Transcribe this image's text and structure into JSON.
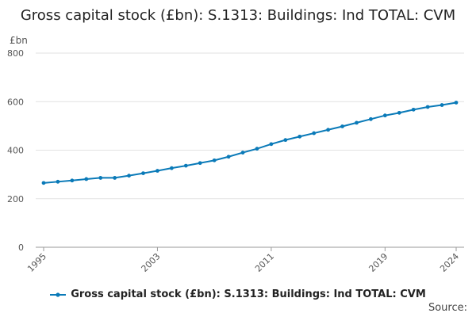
{
  "chart_data": {
    "type": "line",
    "title": "Gross capital stock (£bn): S.1313: Buildings: Ind TOTAL: CVM",
    "ylabel": "£bn",
    "xlabel": "",
    "ylim": [
      0,
      800
    ],
    "xlim": [
      1995,
      2024
    ],
    "yticks": [
      0,
      200,
      400,
      600,
      800
    ],
    "xticks": [
      1995,
      2003,
      2011,
      2019,
      2024
    ],
    "grid": true,
    "legend_position": "bottom",
    "series": [
      {
        "name": "Gross capital stock (£bn): S.1313: Buildings: Ind TOTAL: CVM",
        "color": "#0a7ab8",
        "x": [
          1995,
          1996,
          1997,
          1998,
          1999,
          2000,
          2001,
          2002,
          2003,
          2004,
          2005,
          2006,
          2007,
          2008,
          2009,
          2010,
          2011,
          2012,
          2013,
          2014,
          2015,
          2016,
          2017,
          2018,
          2019,
          2020,
          2021,
          2022,
          2023,
          2024
        ],
        "values": [
          265,
          270,
          275,
          281,
          286,
          286,
          295,
          305,
          315,
          326,
          336,
          347,
          358,
          373,
          390,
          406,
          425,
          442,
          456,
          470,
          484,
          498,
          513,
          528,
          543,
          554,
          567,
          578,
          586,
          596
        ]
      }
    ]
  },
  "source_label": "Source:"
}
